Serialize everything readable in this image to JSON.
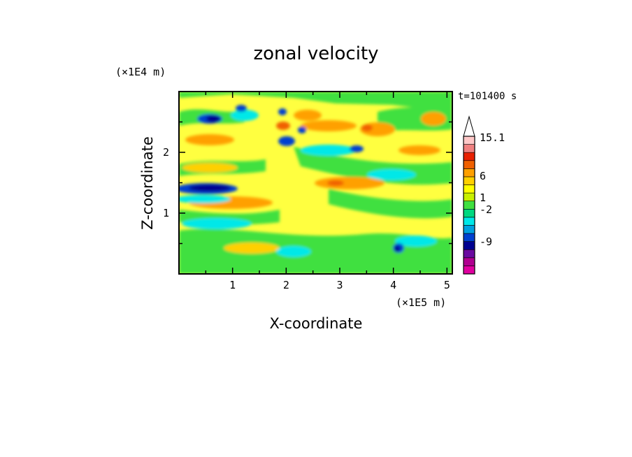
{
  "chart_data": {
    "type": "heatmap",
    "title": "zonal velocity",
    "xlabel": "X-coordinate",
    "ylabel": "Z-coordinate",
    "x_scale_label": "(×1E5 m)",
    "y_scale_label": "(×1E4 m)",
    "time_label": "t=101400 s",
    "xlim": [
      0,
      5.1
    ],
    "ylim": [
      0,
      3.0
    ],
    "x_ticks": [
      "1",
      "2",
      "3",
      "4",
      "5"
    ],
    "y_ticks": [
      "1",
      "2"
    ],
    "colorbar": {
      "tick_labels": [
        "15.1",
        "6",
        "1",
        "-2",
        "-9"
      ],
      "tick_values": [
        15.1,
        6,
        1,
        -2,
        -9
      ],
      "colors": [
        "#e000a0",
        "#b00090",
        "#6a0aa0",
        "#000090",
        "#0040d0",
        "#00a0e0",
        "#00e8e8",
        "#00d880",
        "#40e040",
        "#c8f000",
        "#ffff00",
        "#ffd000",
        "#ffa000",
        "#f06000",
        "#e82000",
        "#f08080",
        "#ffc8c8",
        "#ffffff"
      ]
    }
  }
}
